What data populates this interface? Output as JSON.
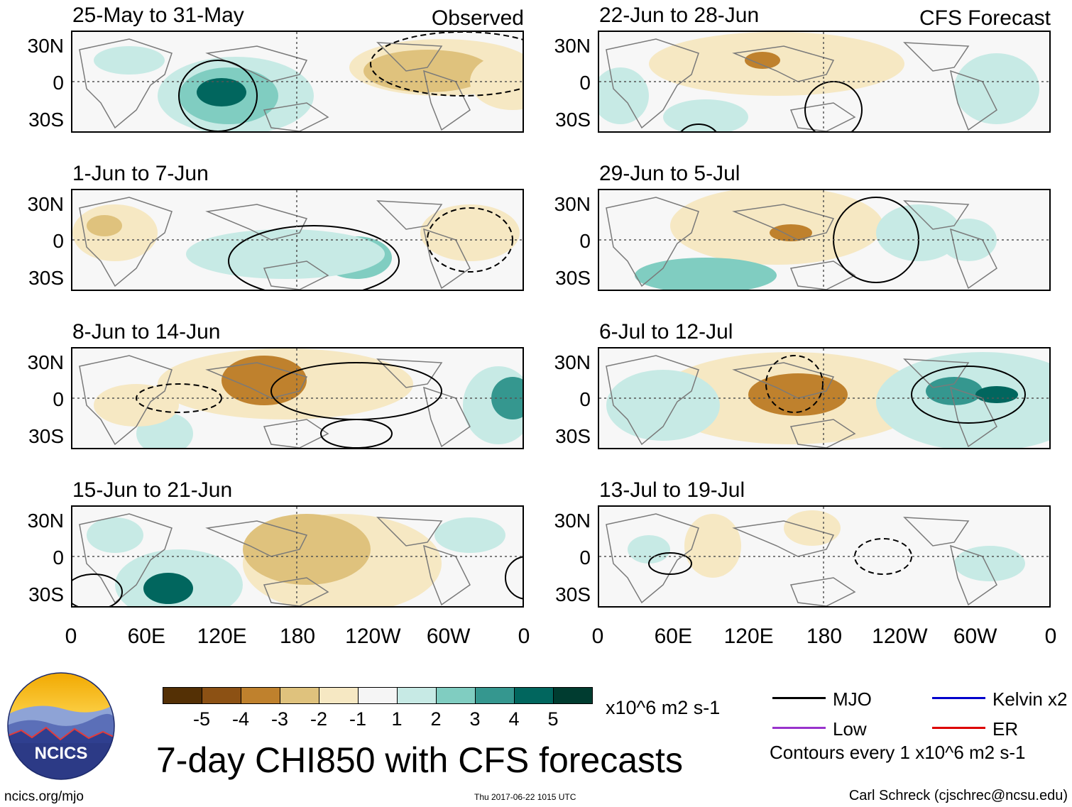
{
  "chart_data": {
    "type": "heatmap",
    "title": "7-day CHI850 with CFS forecasts",
    "variable": "CHI850",
    "units": "x10^6 m2 s-1",
    "y_ticks": [
      "30N",
      "0",
      "30S"
    ],
    "x_ticks": [
      "0",
      "60E",
      "120E",
      "180",
      "120W",
      "60W",
      "0"
    ],
    "columns": [
      {
        "label": "Observed",
        "panels": [
          "25-May to 31-May",
          "1-Jun to 7-Jun",
          "8-Jun to 14-Jun",
          "15-Jun to 21-Jun"
        ]
      },
      {
        "label": "CFS Forecast",
        "panels": [
          "22-Jun to 28-Jun",
          "29-Jun to 5-Jul",
          "6-Jul to 12-Jul",
          "13-Jul to 19-Jul"
        ]
      }
    ],
    "colorbar": {
      "ticks": [
        "-5",
        "-4",
        "-3",
        "-2",
        "-1",
        "1",
        "2",
        "3",
        "4",
        "5"
      ],
      "colors": [
        "#543005",
        "#8c5114",
        "#bf812d",
        "#dfc27d",
        "#f6e8c3",
        "#f5f5f5",
        "#c7eae5",
        "#80cdc1",
        "#35978f",
        "#01665e",
        "#003c30"
      ]
    },
    "legend": [
      {
        "label": "MJO",
        "color": "#000000"
      },
      {
        "label": "Kelvin x2",
        "color": "#0000cc"
      },
      {
        "label": "Low",
        "color": "#9933cc"
      },
      {
        "label": "ER",
        "color": "#dd0000"
      }
    ],
    "contour_note": "Contours every 1 x10^6 m2 s-1"
  },
  "footer": {
    "url": "ncics.org/mjo",
    "timestamp": "Thu 2017-06-22 1015 UTC",
    "author": "Carl Schreck (cjschrec@ncsu.edu)"
  },
  "logo": {
    "text": "NCICS"
  }
}
